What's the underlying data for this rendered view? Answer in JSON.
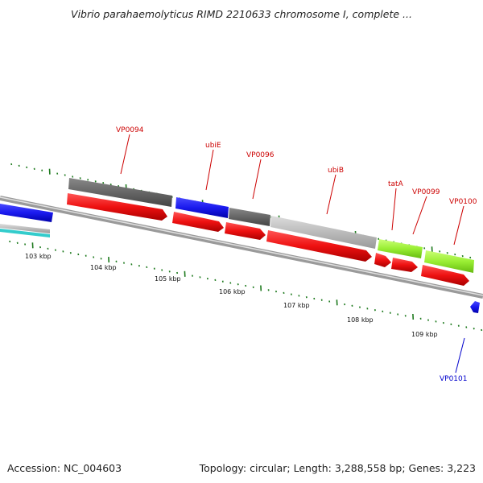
{
  "title": "Vibrio parahaemolyticus RIMD 2210633 chromosome I, complete ...",
  "footer": {
    "accession": "Accession: NC_004603",
    "summary": "Topology: circular; Length: 3,288,558 bp; Genes: 3,223"
  },
  "colors": {
    "backbone": "#8a8a8a",
    "tick": "#1e7a1e",
    "cds": "#ee1111",
    "label_red": "#cc0000",
    "label_blue": "#0000cc",
    "gray_dark": "#666666",
    "gray_light": "#bbbbbb",
    "blue": "#1a1aee",
    "green": "#99ee33",
    "cyan": "#33cccc"
  },
  "scale_labels": [
    "103 kbp",
    "104 kbp",
    "105 kbp",
    "106 kbp",
    "107 kbp",
    "108 kbp",
    "109 kbp"
  ],
  "gene_labels": [
    {
      "text": "VP0094",
      "color": "label_red"
    },
    {
      "text": "ubiE",
      "color": "label_red"
    },
    {
      "text": "VP0096",
      "color": "label_red"
    },
    {
      "text": "ubiB",
      "color": "label_red"
    },
    {
      "text": "tatA",
      "color": "label_red"
    },
    {
      "text": "VP0099",
      "color": "label_red"
    },
    {
      "text": "VP0100",
      "color": "label_red"
    },
    {
      "text": "VP0101",
      "color": "label_blue"
    }
  ]
}
